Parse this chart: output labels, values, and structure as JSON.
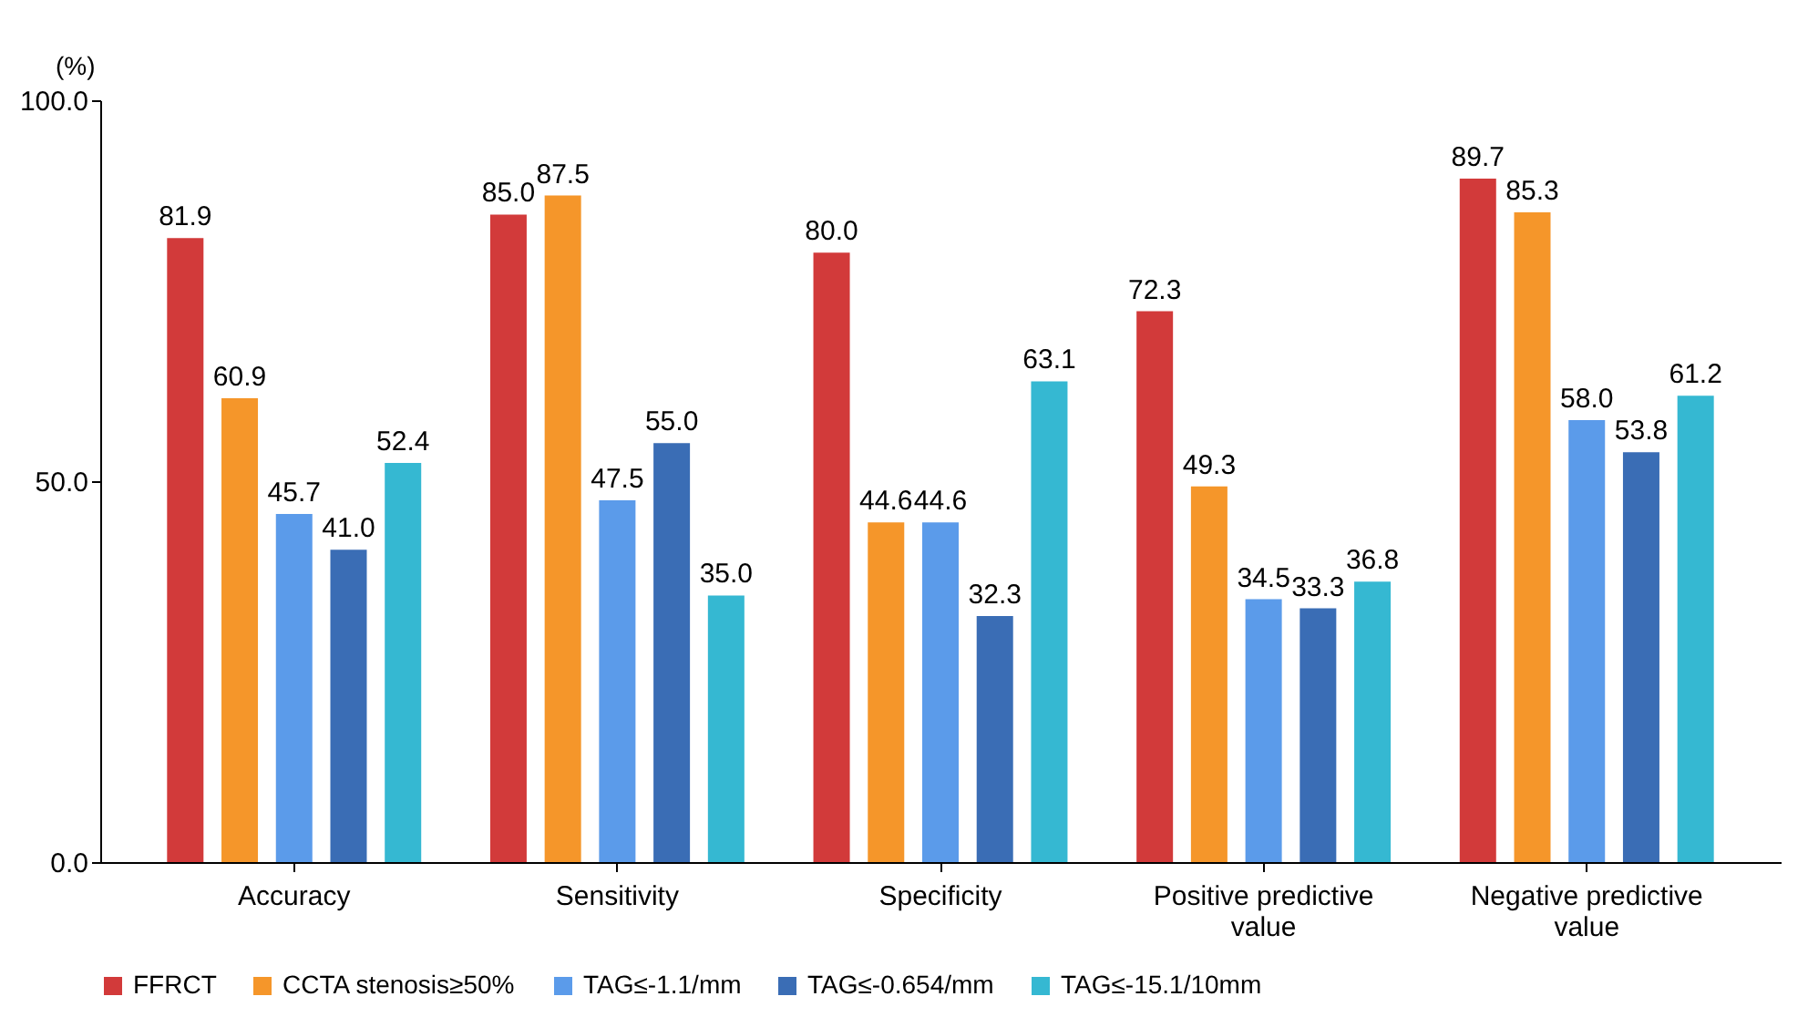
{
  "chart_data": {
    "type": "bar",
    "ylabel": "(%)",
    "categories": [
      "Accuracy",
      "Sensitivity",
      "Specificity",
      "Positive predictive value",
      "Negative predictive value"
    ],
    "series": [
      {
        "name": "FFRCT",
        "color": "#d23a3a",
        "values": [
          81.9,
          85.0,
          80.0,
          72.3,
          89.7
        ],
        "value_labels": [
          "81.9",
          "85.0",
          "80.0",
          "72.3",
          "89.7"
        ]
      },
      {
        "name": "CCTA stenosis≥50%",
        "color": "#f5962a",
        "values": [
          60.9,
          87.5,
          44.6,
          49.3,
          85.3
        ],
        "value_labels": [
          "60.9",
          "87.5",
          "44.6",
          "49.3",
          "85.3"
        ]
      },
      {
        "name": "TAG≤-1.1/mm",
        "color": "#5b9bea",
        "values": [
          45.7,
          47.5,
          44.6,
          34.5,
          58.0
        ],
        "value_labels": [
          "45.7",
          "47.5",
          "44.6",
          "34.5",
          "58.0"
        ]
      },
      {
        "name": "TAG≤-0.654/mm",
        "color": "#3a6db5",
        "values": [
          41.0,
          55.0,
          32.3,
          33.3,
          53.8
        ],
        "value_labels": [
          "41.0",
          "55.0",
          "32.3",
          "33.3",
          "53.8"
        ]
      },
      {
        "name": "TAG≤-15.1/10mm",
        "color": "#35b8d2",
        "values": [
          52.4,
          35.0,
          63.1,
          36.8,
          61.2
        ],
        "value_labels": [
          "52.4",
          "35.0",
          "63.1",
          "36.8",
          "61.2"
        ]
      }
    ],
    "ylim": [
      0,
      100
    ],
    "yticks": [
      {
        "value": 0,
        "label": "0.0"
      },
      {
        "value": 50,
        "label": "50.0"
      },
      {
        "value": 100,
        "label": "100.0"
      }
    ],
    "grid": false,
    "legend": "bottom"
  }
}
